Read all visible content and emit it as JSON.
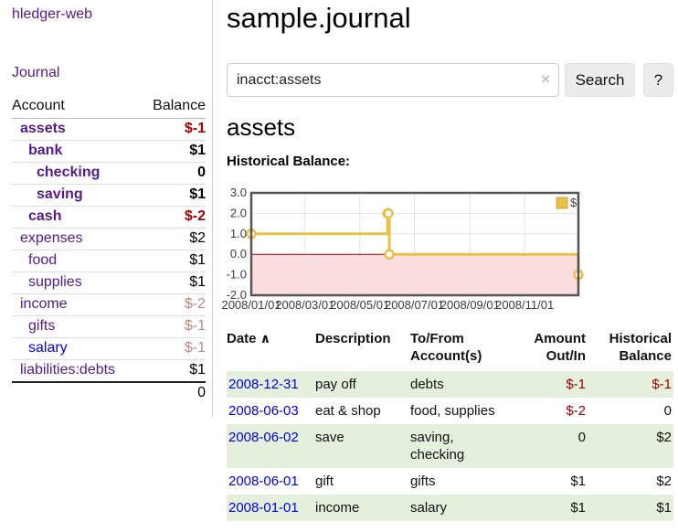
{
  "app": {
    "title": "hledger-web"
  },
  "sidebar": {
    "journal_link": "Journal",
    "accounts_header": {
      "account": "Account",
      "balance": "Balance"
    },
    "accounts": [
      {
        "name": "assets",
        "balance": "$-1",
        "level": 0,
        "bold": true,
        "name_color": "purple",
        "balance_color": "red"
      },
      {
        "name": "bank",
        "balance": "$1",
        "level": 1,
        "bold": true,
        "name_color": "purple",
        "balance_color": "black"
      },
      {
        "name": "checking",
        "balance": "0",
        "level": 2,
        "bold": true,
        "name_color": "purple",
        "balance_color": "black"
      },
      {
        "name": "saving",
        "balance": "$1",
        "level": 2,
        "bold": true,
        "name_color": "purple",
        "balance_color": "black"
      },
      {
        "name": "cash",
        "balance": "$-2",
        "level": 1,
        "bold": true,
        "name_color": "purple",
        "balance_color": "red"
      },
      {
        "name": "expenses",
        "balance": "$2",
        "level": 0,
        "bold": false,
        "name_color": "purple",
        "balance_color": "black"
      },
      {
        "name": "food",
        "balance": "$1",
        "level": 1,
        "bold": false,
        "name_color": "purple",
        "balance_color": "black"
      },
      {
        "name": "supplies",
        "balance": "$1",
        "level": 1,
        "bold": false,
        "name_color": "purple",
        "balance_color": "black"
      },
      {
        "name": "income",
        "balance": "$-2",
        "level": 0,
        "bold": false,
        "name_color": "purple",
        "balance_color": "dimred"
      },
      {
        "name": "gifts",
        "balance": "$-1",
        "level": 1,
        "bold": false,
        "name_color": "purple",
        "balance_color": "dimred"
      },
      {
        "name": "salary",
        "balance": "$-1",
        "level": 1,
        "bold": false,
        "name_color": "blue",
        "balance_color": "dimred"
      },
      {
        "name": "liabilities:debts",
        "balance": "$1",
        "level": 0,
        "bold": false,
        "name_color": "purple",
        "balance_color": "black"
      }
    ],
    "total": "0"
  },
  "header": {
    "title": "sample.journal"
  },
  "search": {
    "value": "inacct:assets",
    "clear_icon": "×",
    "button": "Search",
    "help_button": "?"
  },
  "account_page": {
    "heading": "assets"
  },
  "chart_data": {
    "type": "line",
    "title": "Historical Balance:",
    "series": [
      {
        "name": "$",
        "color": "#e9c04a",
        "legend_border": "#cfa835",
        "points": [
          [
            "2008-01-01",
            1
          ],
          [
            "2008-06-01",
            2
          ],
          [
            "2008-06-02",
            2
          ],
          [
            "2008-06-03",
            0
          ],
          [
            "2008-12-31",
            -1
          ]
        ]
      }
    ],
    "step": true,
    "x_range": [
      "2008-01-01",
      "2008-12-31"
    ],
    "x_ticks": [
      "2008/01/01",
      "2008/03/01",
      "2008/05/01",
      "2008/07/01",
      "2008/09/01",
      "2008/11/01"
    ],
    "y_ticks": [
      "3.0",
      "2.0",
      "1.0",
      "0.0",
      "-1.0",
      "-2.0"
    ],
    "ylim": [
      -2,
      3
    ],
    "grid": true,
    "grid_color": "#e4e4e4",
    "border_color": "#555555",
    "negative_fill": "#fcdddd",
    "zero_line_color": "#990000",
    "legend": "$",
    "legend_position": "top-right"
  },
  "register": {
    "columns": {
      "date": {
        "label": "Date",
        "sort_indicator": "∧"
      },
      "description": {
        "label": "Description"
      },
      "account": {
        "line1": "To/From",
        "line2": "Account(s)"
      },
      "amount": {
        "line1": "Amount",
        "line2": "Out/In"
      },
      "balance": {
        "line1": "Historical",
        "line2": "Balance"
      }
    },
    "rows": [
      {
        "date": "2008-12-31",
        "description": "pay off",
        "accounts": "debts",
        "amount": "$-1",
        "amount_neg": true,
        "balance": "$-1",
        "balance_neg": true,
        "shaded": true
      },
      {
        "date": "2008-06-03",
        "description": "eat & shop",
        "accounts": "food, supplies",
        "amount": "$-2",
        "amount_neg": true,
        "balance": "0",
        "balance_neg": false,
        "shaded": false
      },
      {
        "date": "2008-06-02",
        "description": "save",
        "accounts": "saving, checking",
        "amount": "0",
        "amount_neg": false,
        "balance": "$2",
        "balance_neg": false,
        "shaded": true
      },
      {
        "date": "2008-06-01",
        "description": "gift",
        "accounts": "gifts",
        "amount": "$1",
        "amount_neg": false,
        "balance": "$2",
        "balance_neg": false,
        "shaded": false
      },
      {
        "date": "2008-01-01",
        "description": "income",
        "accounts": "salary",
        "amount": "$1",
        "amount_neg": false,
        "balance": "$1",
        "balance_neg": false,
        "shaded": true
      }
    ]
  },
  "colors": {
    "link_purple": "#551a8b",
    "link_blue": "#0000e8",
    "negative_amount": "#a40000",
    "dim_negative_amount": "#c08585",
    "shaded_row": "#e4efdc"
  }
}
